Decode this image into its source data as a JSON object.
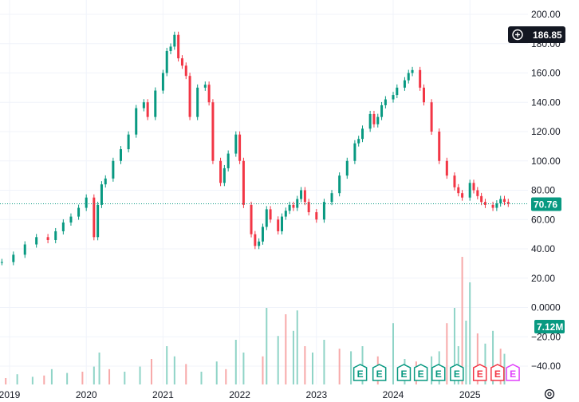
{
  "chart_data": {
    "type": "candlestick",
    "title": "",
    "x_tick_labels": [
      "2019",
      "2020",
      "2021",
      "2022",
      "2023",
      "2024",
      "2025"
    ],
    "price_axis": {
      "ticks": [
        "200.00",
        "180.00",
        "160.00",
        "140.00",
        "120.00",
        "100.00",
        "80.00",
        "60.00",
        "40.00",
        "20.00",
        "0.0000",
        "−20.00",
        "−40.00"
      ],
      "ylim": [
        -48,
        200
      ]
    },
    "grid": true,
    "crosshair_label": "186.85",
    "last_price": 70.76,
    "last_price_label": "70.76",
    "volume_label": "7.12M",
    "price_series": {
      "name": "",
      "x": [
        2018.9,
        2019.05,
        2019.2,
        2019.35,
        2019.5,
        2019.6,
        2019.7,
        2019.8,
        2019.9,
        2020.0,
        2020.1,
        2020.15,
        2020.2,
        2020.25,
        2020.35,
        2020.45,
        2020.55,
        2020.65,
        2020.75,
        2020.8,
        2020.9,
        2021.0,
        2021.05,
        2021.1,
        2021.15,
        2021.2,
        2021.25,
        2021.3,
        2021.35,
        2021.45,
        2021.55,
        2021.6,
        2021.65,
        2021.75,
        2021.8,
        2021.85,
        2021.95,
        2022.0,
        2022.05,
        2022.15,
        2022.2,
        2022.25,
        2022.3,
        2022.35,
        2022.4,
        2022.5,
        2022.55,
        2022.6,
        2022.65,
        2022.7,
        2022.75,
        2022.8,
        2022.85,
        2022.9,
        2023.0,
        2023.1,
        2023.2,
        2023.3,
        2023.4,
        2023.5,
        2023.55,
        2023.6,
        2023.7,
        2023.75,
        2023.8,
        2023.85,
        2023.9,
        2024.0,
        2024.05,
        2024.15,
        2024.2,
        2024.25,
        2024.35,
        2024.4,
        2024.5,
        2024.6,
        2024.7,
        2024.8,
        2024.85,
        2024.9,
        2025.0,
        2025.05,
        2025.1,
        2025.15,
        2025.2,
        2025.3,
        2025.35,
        2025.4,
        2025.45,
        2025.5
      ],
      "values": [
        31,
        36,
        43,
        48,
        46,
        52,
        58,
        62,
        68,
        75,
        48,
        70,
        84,
        88,
        100,
        108,
        118,
        136,
        140,
        130,
        148,
        160,
        175,
        178,
        186,
        170,
        165,
        158,
        130,
        150,
        152,
        140,
        100,
        85,
        95,
        105,
        118,
        100,
        70,
        50,
        42,
        45,
        55,
        67,
        60,
        52,
        62,
        66,
        70,
        68,
        74,
        80,
        72,
        65,
        60,
        72,
        78,
        90,
        100,
        112,
        115,
        122,
        132,
        125,
        130,
        138,
        142,
        145,
        150,
        155,
        160,
        162,
        150,
        140,
        120,
        100,
        90,
        82,
        78,
        75,
        85,
        80,
        76,
        72,
        70,
        68,
        71,
        74,
        72,
        70.76
      ]
    },
    "volume_series": {
      "name": "",
      "unit": "M",
      "x": [
        2018.95,
        2019.1,
        2019.3,
        2019.45,
        2019.55,
        2019.75,
        2019.95,
        2020.1,
        2020.17,
        2020.3,
        2020.5,
        2020.7,
        2020.85,
        2021.05,
        2021.15,
        2021.3,
        2021.5,
        2021.7,
        2021.82,
        2021.95,
        2022.05,
        2022.3,
        2022.35,
        2022.5,
        2022.6,
        2022.7,
        2022.75,
        2022.85,
        2022.95,
        2023.1,
        2023.3,
        2023.45,
        2023.6,
        2023.8,
        2024.0,
        2024.15,
        2024.3,
        2024.5,
        2024.6,
        2024.7,
        2024.8,
        2024.85,
        2024.9,
        2024.95,
        2025.0,
        2025.1,
        2025.2,
        2025.3,
        2025.4,
        2025.45
      ],
      "values": [
        5,
        8,
        6,
        7,
        12,
        9,
        10,
        14,
        25,
        12,
        10,
        14,
        20,
        30,
        22,
        16,
        10,
        18,
        12,
        35,
        25,
        22,
        60,
        38,
        55,
        42,
        58,
        30,
        25,
        35,
        28,
        26,
        30,
        22,
        48,
        20,
        18,
        22,
        26,
        48,
        60,
        30,
        100,
        50,
        80,
        40,
        32,
        42,
        28,
        24
      ]
    },
    "event_markers": [
      {
        "label": "E",
        "color": "#089981",
        "x": 2023.57
      },
      {
        "label": "E",
        "color": "#089981",
        "x": 2023.82
      },
      {
        "label": "E",
        "color": "#089981",
        "x": 2024.14
      },
      {
        "label": "E",
        "color": "#089981",
        "x": 2024.36
      },
      {
        "label": "E",
        "color": "#089981",
        "x": 2024.59
      },
      {
        "label": "E",
        "color": "#089981",
        "x": 2024.83
      },
      {
        "label": "E",
        "color": "#f23645",
        "x": 2025.13
      },
      {
        "label": "E",
        "color": "#f23645",
        "x": 2025.36
      },
      {
        "label": "E",
        "color": "#e040fb",
        "x": 2025.56
      }
    ],
    "colors": {
      "up": "#089981",
      "down": "#f23645",
      "up_volume": "#8fd4c7",
      "down_volume": "#f7a9a9",
      "grid": "#f0f3fa",
      "last_price_line": "#089981",
      "crosshair_badge": "#131722",
      "axis_text": "#131722"
    },
    "icons": {
      "crosshair_plus": "plus-circle-icon",
      "settings": "settings-icon"
    }
  }
}
